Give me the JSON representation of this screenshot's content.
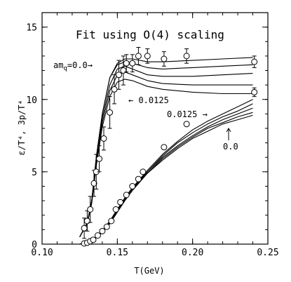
{
  "chart_data": {
    "type": "scatter",
    "title": "Fit using O(4) scaling",
    "xlabel": "T(GeV)",
    "ylabel": "ε/T⁴, 3p/T⁴",
    "xlim": [
      0.1,
      0.25
    ],
    "ylim": [
      0,
      16
    ],
    "xticks": [
      "0.10",
      "0.15",
      "0.20",
      "0.25"
    ],
    "yticks": [
      "0",
      "5",
      "10",
      "15"
    ],
    "grid": false,
    "annotations": {
      "amq_label": "am",
      "amq_sub": "q",
      "amq_rest": "=0.0→",
      "eps_0125": "← 0.0125",
      "p_0125": "0.0125  →",
      "p_00": "0.0"
    },
    "series": [
      {
        "points": [
          {
            "x": 0.128,
            "y": 1.1,
            "err": 0.7
          },
          {
            "x": 0.13,
            "y": 1.6,
            "err": 0.7
          },
          {
            "x": 0.132,
            "y": 2.4,
            "err": 0.9
          },
          {
            "x": 0.1345,
            "y": 4.2,
            "err": 0.9
          },
          {
            "x": 0.136,
            "y": 5.0,
            "err": 1.2
          },
          {
            "x": 0.138,
            "y": 5.9,
            "err": 0.9
          },
          {
            "x": 0.141,
            "y": 7.3,
            "err": 0.8
          },
          {
            "x": 0.145,
            "y": 9.1,
            "err": 1.1
          },
          {
            "x": 0.148,
            "y": 10.7,
            "err": 1.0
          },
          {
            "x": 0.151,
            "y": 11.7,
            "err": 1.0
          },
          {
            "x": 0.154,
            "y": 12.0,
            "err": 1.0
          },
          {
            "x": 0.156,
            "y": 12.5,
            "err": 0.6
          },
          {
            "x": 0.16,
            "y": 12.5,
            "err": 0.6
          },
          {
            "x": 0.164,
            "y": 13.0,
            "err": 0.6
          },
          {
            "x": 0.17,
            "y": 13.0,
            "err": 0.5
          },
          {
            "x": 0.181,
            "y": 12.8,
            "err": 0.5
          },
          {
            "x": 0.196,
            "y": 13.0,
            "err": 0.5
          },
          {
            "x": 0.241,
            "y": 12.6,
            "err": 0.4
          },
          {
            "x": 0.241,
            "y": 10.5,
            "err": 0.3
          }
        ]
      },
      {
        "points": [
          {
            "x": 0.128,
            "y": 0.05,
            "err": 0
          },
          {
            "x": 0.13,
            "y": 0.1,
            "err": 0
          },
          {
            "x": 0.132,
            "y": 0.2,
            "err": 0
          },
          {
            "x": 0.134,
            "y": 0.3,
            "err": 0
          },
          {
            "x": 0.137,
            "y": 0.6,
            "err": 0
          },
          {
            "x": 0.14,
            "y": 0.9,
            "err": 0
          },
          {
            "x": 0.143,
            "y": 1.2,
            "err": 0
          },
          {
            "x": 0.146,
            "y": 1.6,
            "err": 0
          },
          {
            "x": 0.149,
            "y": 2.4,
            "err": 0
          },
          {
            "x": 0.152,
            "y": 2.9,
            "err": 0
          },
          {
            "x": 0.156,
            "y": 3.4,
            "err": 0
          },
          {
            "x": 0.16,
            "y": 4.0,
            "err": 0
          },
          {
            "x": 0.164,
            "y": 4.5,
            "err": 0
          },
          {
            "x": 0.167,
            "y": 5.0,
            "err": 0
          },
          {
            "x": 0.181,
            "y": 6.7,
            "err": 0
          },
          {
            "x": 0.196,
            "y": 8.3,
            "err": 0
          }
        ]
      }
    ],
    "curves": [
      {
        "x": [
          0.125,
          0.13,
          0.133,
          0.136,
          0.14,
          0.145,
          0.15,
          0.155,
          0.16,
          0.17,
          0.18,
          0.2,
          0.22,
          0.24
        ],
        "y": [
          0.5,
          1.5,
          3.0,
          6.0,
          9.0,
          11.5,
          12.5,
          12.8,
          12.8,
          12.6,
          12.6,
          12.7,
          12.8,
          12.9
        ]
      },
      {
        "x": [
          0.125,
          0.13,
          0.133,
          0.136,
          0.14,
          0.145,
          0.15,
          0.155,
          0.16,
          0.17,
          0.18,
          0.2,
          0.22,
          0.24
        ],
        "y": [
          0.5,
          1.5,
          3.0,
          6.0,
          9.0,
          11.5,
          12.4,
          12.6,
          12.5,
          12.2,
          12.1,
          12.2,
          12.3,
          12.4
        ]
      },
      {
        "x": [
          0.125,
          0.13,
          0.133,
          0.136,
          0.14,
          0.145,
          0.15,
          0.155,
          0.16,
          0.17,
          0.18,
          0.2,
          0.22,
          0.24
        ],
        "y": [
          0.5,
          1.5,
          3.0,
          5.8,
          8.7,
          11.0,
          12.1,
          12.3,
          12.1,
          11.7,
          11.6,
          11.6,
          11.7,
          11.8
        ]
      },
      {
        "x": [
          0.125,
          0.13,
          0.133,
          0.136,
          0.14,
          0.145,
          0.15,
          0.155,
          0.16,
          0.17,
          0.18,
          0.2,
          0.22,
          0.24
        ],
        "y": [
          0.5,
          1.4,
          2.9,
          5.6,
          8.4,
          10.6,
          11.7,
          11.9,
          11.7,
          11.3,
          11.1,
          11.0,
          11.0,
          11.0
        ]
      },
      {
        "x": [
          0.125,
          0.13,
          0.133,
          0.136,
          0.14,
          0.145,
          0.15,
          0.155,
          0.16,
          0.17,
          0.18,
          0.2,
          0.22,
          0.24
        ],
        "y": [
          0.5,
          1.4,
          2.8,
          5.4,
          8.1,
          10.2,
          11.2,
          11.4,
          11.3,
          10.9,
          10.7,
          10.5,
          10.4,
          10.4
        ]
      },
      {
        "x": [
          0.125,
          0.13,
          0.135,
          0.14,
          0.145,
          0.15,
          0.155,
          0.16,
          0.17,
          0.18,
          0.19,
          0.2,
          0.21,
          0.22,
          0.23,
          0.24
        ],
        "y": [
          0,
          0.15,
          0.4,
          0.9,
          1.6,
          2.4,
          3.2,
          3.9,
          5.1,
          6.2,
          7.1,
          7.9,
          8.5,
          9.0,
          9.5,
          10.0
        ]
      },
      {
        "x": [
          0.125,
          0.13,
          0.135,
          0.14,
          0.145,
          0.15,
          0.155,
          0.16,
          0.17,
          0.18,
          0.19,
          0.2,
          0.21,
          0.22,
          0.23,
          0.24
        ],
        "y": [
          0,
          0.15,
          0.4,
          0.9,
          1.6,
          2.4,
          3.2,
          3.9,
          5.0,
          6.1,
          7.0,
          7.7,
          8.3,
          8.8,
          9.2,
          9.7
        ]
      },
      {
        "x": [
          0.125,
          0.13,
          0.135,
          0.14,
          0.145,
          0.15,
          0.155,
          0.16,
          0.17,
          0.18,
          0.19,
          0.2,
          0.21,
          0.22,
          0.23,
          0.24
        ],
        "y": [
          0,
          0.15,
          0.4,
          0.9,
          1.5,
          2.3,
          3.1,
          3.8,
          5.0,
          6.0,
          6.8,
          7.5,
          8.1,
          8.6,
          9.0,
          9.4
        ]
      },
      {
        "x": [
          0.125,
          0.13,
          0.135,
          0.14,
          0.145,
          0.15,
          0.155,
          0.16,
          0.17,
          0.18,
          0.19,
          0.2,
          0.21,
          0.22,
          0.23,
          0.24
        ],
        "y": [
          0,
          0.15,
          0.4,
          0.8,
          1.5,
          2.3,
          3.1,
          3.8,
          4.9,
          5.9,
          6.7,
          7.4,
          8.0,
          8.4,
          8.8,
          9.1
        ]
      },
      {
        "x": [
          0.125,
          0.13,
          0.135,
          0.14,
          0.145,
          0.15,
          0.155,
          0.16,
          0.17,
          0.18,
          0.19,
          0.2,
          0.21,
          0.22,
          0.23,
          0.24
        ],
        "y": [
          0,
          0.1,
          0.35,
          0.8,
          1.4,
          2.2,
          3.0,
          3.7,
          4.9,
          5.8,
          6.6,
          7.3,
          7.8,
          8.3,
          8.6,
          8.9
        ]
      }
    ]
  }
}
